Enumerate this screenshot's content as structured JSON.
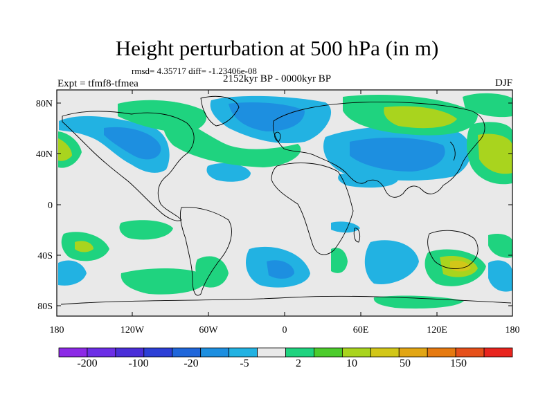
{
  "title": "Height perturbation at 500 hPa (in m)",
  "stats": "rmsd= 4.35717 diff= -1.23406e-08",
  "period": "2152kyr BP - 0000kyr BP",
  "experiment": "Expt = tfmf8-tfmea",
  "season": "DJF",
  "axes": {
    "lat_labels": [
      "80N",
      "40N",
      "0",
      "40S",
      "80S"
    ],
    "lon_labels": [
      "180",
      "120W",
      "60W",
      "0",
      "60E",
      "120E",
      "180"
    ]
  },
  "colorbar": {
    "colors": [
      "#8c2ae6",
      "#6c2ee6",
      "#4a2ed8",
      "#2c3fd6",
      "#1f66da",
      "#1d8fe0",
      "#22b2e2",
      "#e9e9e9",
      "#1fd37f",
      "#4ccc2c",
      "#a9d41e",
      "#d2c718",
      "#e2a614",
      "#e67a10",
      "#e6501a",
      "#e8241e"
    ],
    "labels": [
      "-200",
      "-100",
      "-20",
      "-5",
      "2",
      "10",
      "50",
      "150"
    ]
  },
  "field_colors": {
    "neutral": "#e9e9e9",
    "pos_low": "#1fd37f",
    "pos_mid": "#a9d41e",
    "pos_high": "#d2c718",
    "neg_low": "#22b2e2",
    "neg_mid": "#1d8fe0",
    "neg_high": "#1f66da"
  }
}
